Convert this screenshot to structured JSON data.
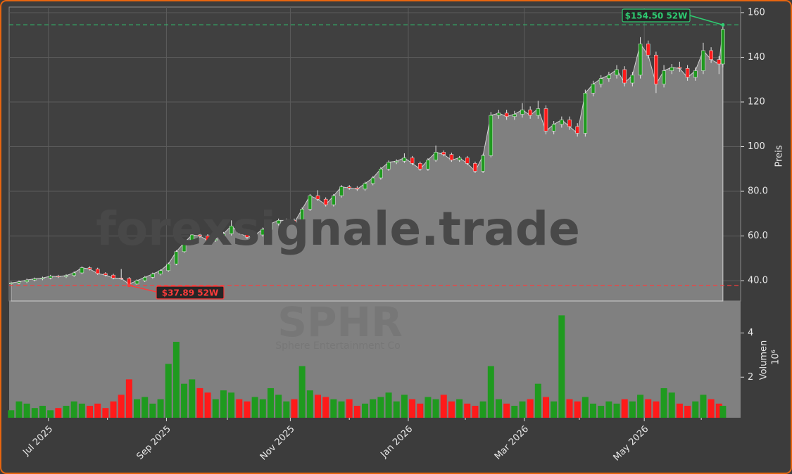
{
  "chart_data": {
    "type": "candlestick",
    "watermark": "forexsignale.trade",
    "symbol": "SPHR",
    "company": "Sphere Entertainment Co",
    "x": [
      1,
      5,
      9,
      13,
      17,
      21,
      25,
      29,
      33,
      37,
      41,
      45,
      49,
      53,
      57,
      61,
      65,
      69,
      73,
      77,
      81,
      85,
      89,
      93,
      97,
      101,
      105,
      109,
      113,
      117,
      121,
      125,
      129,
      133,
      137,
      141,
      145,
      149,
      153,
      157,
      161,
      165,
      169,
      173,
      177,
      181,
      185,
      189,
      193,
      197,
      201,
      205,
      209,
      213,
      217,
      221,
      225,
      229,
      233,
      237,
      241,
      245,
      249,
      253,
      257,
      261,
      265,
      269,
      273,
      277,
      281,
      285,
      289,
      293,
      297,
      301,
      305,
      309,
      313,
      317,
      321,
      325,
      329,
      333,
      337,
      341,
      345,
      349,
      353,
      357,
      361,
      363
    ],
    "open": [
      38.6,
      39.0,
      39.5,
      40.3,
      40.8,
      41.2,
      42.0,
      41.8,
      42.3,
      43.5,
      45.8,
      45.2,
      43.2,
      42.5,
      41.2,
      41.0,
      38.5,
      40.0,
      41.5,
      43.0,
      44.5,
      47.5,
      53.0,
      57.0,
      60.5,
      60.0,
      58.0,
      58.5,
      61.0,
      64.5,
      61.5,
      59.5,
      60.5,
      63.0,
      65.5,
      67.0,
      67.0,
      66.0,
      72.0,
      78.0,
      76.5,
      74.0,
      78.0,
      82.0,
      81.5,
      81.0,
      83.5,
      86.0,
      90.0,
      93.0,
      93.5,
      95.0,
      92.5,
      90.0,
      94.0,
      97.5,
      96.5,
      94.0,
      95.0,
      92.5,
      89.0,
      96.0,
      114.0,
      115.0,
      113.5,
      114.5,
      116.5,
      114.0,
      117.0,
      107.0,
      110.0,
      112.0,
      109.0,
      106.0,
      124.0,
      128.0,
      130.5,
      132.0,
      134.5,
      128.5,
      132.0,
      146.0,
      141.0,
      128.0,
      134.0,
      135.5,
      135.0,
      131.0,
      134.0,
      143.0,
      139.0,
      137.0
    ],
    "high": [
      39.6,
      40.1,
      40.9,
      41.4,
      41.8,
      42.6,
      42.6,
      42.9,
      44.1,
      46.4,
      46.4,
      45.8,
      43.8,
      43.1,
      45.2,
      41.6,
      40.6,
      42.1,
      43.6,
      45.1,
      48.1,
      53.6,
      57.6,
      61.3,
      61.3,
      60.8,
      59.1,
      61.8,
      67.0,
      65.3,
      62.3,
      61.3,
      63.8,
      66.3,
      67.8,
      67.8,
      67.8,
      72.8,
      78.8,
      80.5,
      77.3,
      78.8,
      82.8,
      82.8,
      82.3,
      84.3,
      86.8,
      90.8,
      93.8,
      94.3,
      97.0,
      95.8,
      93.3,
      94.8,
      100.5,
      98.3,
      97.3,
      95.8,
      95.8,
      93.3,
      96.8,
      115.5,
      116.5,
      116.5,
      116.0,
      119.5,
      118.0,
      120.5,
      118.5,
      111.5,
      113.5,
      113.5,
      110.5,
      125.5,
      129.5,
      132.0,
      133.5,
      136.5,
      136.0,
      133.5,
      149.0,
      147.5,
      142.5,
      136.5,
      137.0,
      138.0,
      136.5,
      135.5,
      146.5,
      144.5,
      140.5,
      154.5
    ],
    "low": [
      38.0,
      38.4,
      38.9,
      39.7,
      40.2,
      40.6,
      41.2,
      41.2,
      41.7,
      42.9,
      44.6,
      42.6,
      41.9,
      40.6,
      40.4,
      37.89,
      37.9,
      39.4,
      40.9,
      42.4,
      43.9,
      46.9,
      52.4,
      56.4,
      59.2,
      57.2,
      57.4,
      57.9,
      60.2,
      60.7,
      58.7,
      58.9,
      59.7,
      62.2,
      64.7,
      66.2,
      65.2,
      65.2,
      71.2,
      75.7,
      73.2,
      73.2,
      77.2,
      80.7,
      80.2,
      80.2,
      82.7,
      85.2,
      89.2,
      92.2,
      92.7,
      91.7,
      89.2,
      89.2,
      93.2,
      95.7,
      93.2,
      93.2,
      91.7,
      88.2,
      88.2,
      95.2,
      112.5,
      112.0,
      112.0,
      113.0,
      112.5,
      112.5,
      105.5,
      105.5,
      108.5,
      107.5,
      104.5,
      104.5,
      122.5,
      126.5,
      129.0,
      130.5,
      127.0,
      127.0,
      130.5,
      139.5,
      124.0,
      126.5,
      132.5,
      133.5,
      129.5,
      129.5,
      132.5,
      137.5,
      132.5,
      135.5
    ],
    "close": [
      39.0,
      39.5,
      40.3,
      40.8,
      41.2,
      42.0,
      41.8,
      42.3,
      43.5,
      45.8,
      45.2,
      43.2,
      42.5,
      41.2,
      41.0,
      38.5,
      40.0,
      41.5,
      43.0,
      44.5,
      47.5,
      53.0,
      57.0,
      60.5,
      60.0,
      58.0,
      58.5,
      61.0,
      64.5,
      61.5,
      59.5,
      60.5,
      63.0,
      65.5,
      67.0,
      67.0,
      66.0,
      72.0,
      78.0,
      76.5,
      74.0,
      78.0,
      82.0,
      81.5,
      81.0,
      83.5,
      86.0,
      90.0,
      93.0,
      93.5,
      95.0,
      92.5,
      90.0,
      94.0,
      97.5,
      96.5,
      94.0,
      95.0,
      92.5,
      89.0,
      96.0,
      114.0,
      115.0,
      113.5,
      114.5,
      116.5,
      114.0,
      117.0,
      107.0,
      110.0,
      112.0,
      109.0,
      106.0,
      124.0,
      128.0,
      130.5,
      132.0,
      134.5,
      128.5,
      132.0,
      146.0,
      141.0,
      128.0,
      134.0,
      135.5,
      135.0,
      131.0,
      134.0,
      143.0,
      139.0,
      137.0,
      152.5
    ],
    "volume": [
      0.5,
      0.9,
      0.8,
      0.6,
      0.7,
      0.5,
      0.6,
      0.7,
      0.9,
      0.8,
      0.7,
      0.8,
      0.6,
      0.9,
      1.2,
      1.9,
      1.0,
      1.1,
      0.8,
      1.0,
      2.6,
      3.6,
      1.7,
      1.9,
      1.5,
      1.3,
      1.0,
      1.4,
      1.3,
      1.0,
      0.9,
      1.1,
      1.0,
      1.5,
      1.2,
      0.9,
      1.0,
      2.5,
      1.4,
      1.2,
      1.1,
      1.0,
      0.9,
      1.0,
      0.7,
      0.8,
      1.0,
      1.1,
      1.3,
      0.9,
      1.2,
      1.0,
      0.8,
      1.1,
      1.0,
      1.2,
      0.9,
      1.0,
      0.8,
      0.7,
      0.9,
      2.5,
      1.0,
      0.8,
      0.7,
      0.9,
      1.0,
      1.7,
      1.1,
      0.9,
      4.8,
      1.0,
      0.9,
      1.1,
      0.8,
      0.7,
      0.9,
      0.8,
      1.0,
      0.9,
      1.2,
      1.0,
      0.9,
      1.5,
      1.3,
      0.8,
      0.7,
      0.9,
      1.2,
      1.0,
      0.8,
      0.7
    ],
    "xlim": [
      0,
      372
    ],
    "xticks": [
      {
        "value": 20,
        "label": "Jul 2025"
      },
      {
        "value": 80,
        "label": "Sep 2025"
      },
      {
        "value": 143,
        "label": "Nov 2025"
      },
      {
        "value": 203,
        "label": "Jan 2026"
      },
      {
        "value": 262,
        "label": "Mar 2026"
      },
      {
        "value": 323,
        "label": "May 2026"
      }
    ],
    "xminorticks": [
      50,
      111,
      173,
      232,
      290,
      352
    ],
    "ylim": [
      30.9,
      162.5
    ],
    "yticks": [
      {
        "value": 40,
        "label": "40.0"
      },
      {
        "value": 60,
        "label": "60.0"
      },
      {
        "value": 80,
        "label": "80.0"
      },
      100,
      120,
      140,
      160
    ],
    "ylabel": "Preis",
    "volume_ylim": [
      0.16,
      5.45
    ],
    "volume_yticks": [
      2,
      4
    ],
    "volume_ylabel": "Volumen",
    "volume_scale": "10⁶",
    "up_color": "#1f9a1f",
    "down_color": "#ff1a1a",
    "area_color": "#808080",
    "grid": true,
    "annotations": [
      {
        "text": "$154.50 52W",
        "value": 154.5,
        "color": "#2ecc71"
      },
      {
        "text": "$37.89 52W",
        "value": 37.89,
        "color": "#ff3b3b"
      }
    ]
  }
}
